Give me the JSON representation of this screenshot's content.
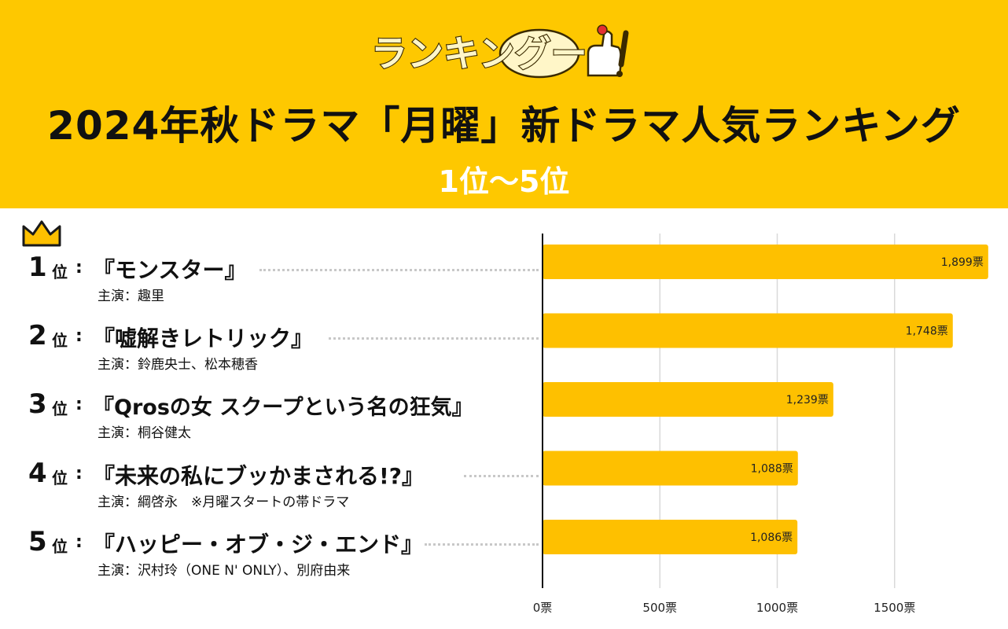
{
  "header": {
    "logo_text": "ランキングー",
    "title": "2024年秋ドラマ「月曜」新ドラマ人気ランキング",
    "subtitle": "1位～5位"
  },
  "ranking": [
    {
      "rank": "1",
      "suffix": "位",
      "colon": ":",
      "title": "『モンスター』",
      "cast": "主演：趣里"
    },
    {
      "rank": "2",
      "suffix": "位",
      "colon": ":",
      "title": "『嘘解きレトリック』",
      "cast": "主演：鈴鹿央士、松本穂香"
    },
    {
      "rank": "3",
      "suffix": "位",
      "colon": ":",
      "title": "『Qrosの女 スクープという名の狂気』",
      "cast": "主演：桐谷健太"
    },
    {
      "rank": "4",
      "suffix": "位",
      "colon": ":",
      "title": "『未来の私にブッかまされる!?』",
      "cast": "主演：綱啓永　※月曜スタートの帯ドラマ"
    },
    {
      "rank": "5",
      "suffix": "位",
      "colon": ":",
      "title": "『ハッピー・オブ・ジ・エンド』",
      "cast": "主演：沢村玲（ONE N' ONLY）、別府由来"
    }
  ],
  "chart_data": {
    "type": "bar",
    "orientation": "horizontal",
    "categories": [
      "モンスター",
      "嘘解きレトリック",
      "Qrosの女 スクープという名の狂気",
      "未来の私にブッかまされる!?",
      "ハッピー・オブ・ジ・エンド"
    ],
    "values": [
      1899,
      1748,
      1239,
      1088,
      1086
    ],
    "value_labels": [
      "1,899票",
      "1,748票",
      "1,239票",
      "1,088票",
      "1,086票"
    ],
    "xlim": [
      0,
      1900
    ],
    "ticks": [
      0,
      500,
      1000,
      1500
    ],
    "tick_labels": [
      "0票",
      "500票",
      "1000票",
      "1500票"
    ],
    "bar_color": "#fec000",
    "grid": true
  },
  "colors": {
    "header_bg": "#fec800",
    "bar": "#fec000",
    "grid": "#d9d9d9"
  }
}
